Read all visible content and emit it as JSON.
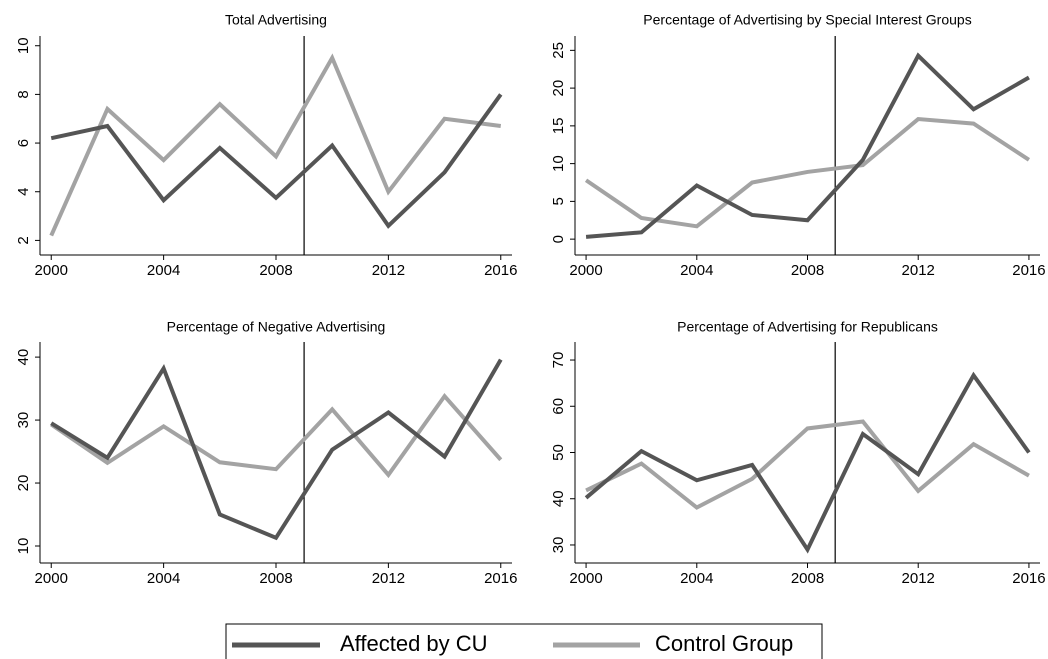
{
  "chart_data": [
    {
      "type": "line",
      "title": "Total Advertising",
      "x": [
        2000,
        2002,
        2004,
        2006,
        2008,
        2010,
        2012,
        2014,
        2016
      ],
      "xlim": [
        1999.6,
        2016.4
      ],
      "xticks": [
        2000,
        2004,
        2008,
        2012,
        2016
      ],
      "ylim": [
        1.4,
        10.4
      ],
      "yticks": [
        2,
        4,
        6,
        8,
        10
      ],
      "vline": 2009,
      "series": [
        {
          "name": "Affected by CU",
          "color": "#555555",
          "values": [
            6.2,
            6.7,
            3.65,
            5.8,
            3.75,
            5.9,
            2.6,
            4.8,
            8.0
          ]
        },
        {
          "name": "Control Group",
          "color": "#a3a3a3",
          "values": [
            2.2,
            7.4,
            5.3,
            7.6,
            5.45,
            9.5,
            4.0,
            7.0,
            6.7
          ]
        }
      ]
    },
    {
      "type": "line",
      "title": "Percentage of Advertising by Special Interest Groups",
      "x": [
        2000,
        2002,
        2004,
        2006,
        2008,
        2010,
        2012,
        2014,
        2016
      ],
      "xlim": [
        1999.6,
        2016.4
      ],
      "xticks": [
        2000,
        2004,
        2008,
        2012,
        2016
      ],
      "ylim": [
        -2.1,
        26.9
      ],
      "yticks": [
        0,
        5,
        10,
        15,
        20,
        25
      ],
      "vline": 2009,
      "series": [
        {
          "name": "Affected by CU",
          "color": "#555555",
          "values": [
            0.3,
            0.9,
            7.1,
            3.2,
            2.5,
            10.5,
            24.3,
            17.2,
            21.4
          ]
        },
        {
          "name": "Control Group",
          "color": "#a3a3a3",
          "values": [
            7.8,
            2.8,
            1.7,
            7.5,
            8.9,
            9.8,
            15.9,
            15.3,
            10.5
          ]
        }
      ]
    },
    {
      "type": "line",
      "title": "Percentage of Negative Advertising",
      "x": [
        2000,
        2002,
        2004,
        2006,
        2008,
        2010,
        2012,
        2014,
        2016
      ],
      "xlim": [
        1999.6,
        2016.4
      ],
      "xticks": [
        2000,
        2004,
        2008,
        2012,
        2016
      ],
      "ylim": [
        7.3,
        42.4
      ],
      "yticks": [
        10,
        20,
        30,
        40
      ],
      "vline": 2009,
      "series": [
        {
          "name": "Affected by CU",
          "color": "#555555",
          "values": [
            29.5,
            24,
            38.2,
            15,
            11.3,
            25.3,
            31.2,
            24.2,
            39.6
          ]
        },
        {
          "name": "Control Group",
          "color": "#a3a3a3",
          "values": [
            29.3,
            23.2,
            29,
            23.3,
            22.2,
            31.7,
            21.3,
            33.8,
            23.7
          ]
        }
      ]
    },
    {
      "type": "line",
      "title": "Percentage of Advertising for Republicans",
      "x": [
        2000,
        2002,
        2004,
        2006,
        2008,
        2010,
        2012,
        2014,
        2016
      ],
      "xlim": [
        1999.6,
        2016.4
      ],
      "xticks": [
        2000,
        2004,
        2008,
        2012,
        2016
      ],
      "ylim": [
        26.1,
        73.9
      ],
      "yticks": [
        30,
        40,
        50,
        60,
        70
      ],
      "vline": 2009,
      "series": [
        {
          "name": "Affected by CU",
          "color": "#555555",
          "values": [
            40.2,
            50.3,
            44,
            47.3,
            29,
            54,
            45.3,
            66.7,
            50
          ]
        },
        {
          "name": "Control Group",
          "color": "#a3a3a3",
          "values": [
            41.8,
            47.6,
            38.1,
            44.3,
            55.2,
            56.7,
            41.7,
            51.8,
            45
          ]
        }
      ]
    }
  ]
}
